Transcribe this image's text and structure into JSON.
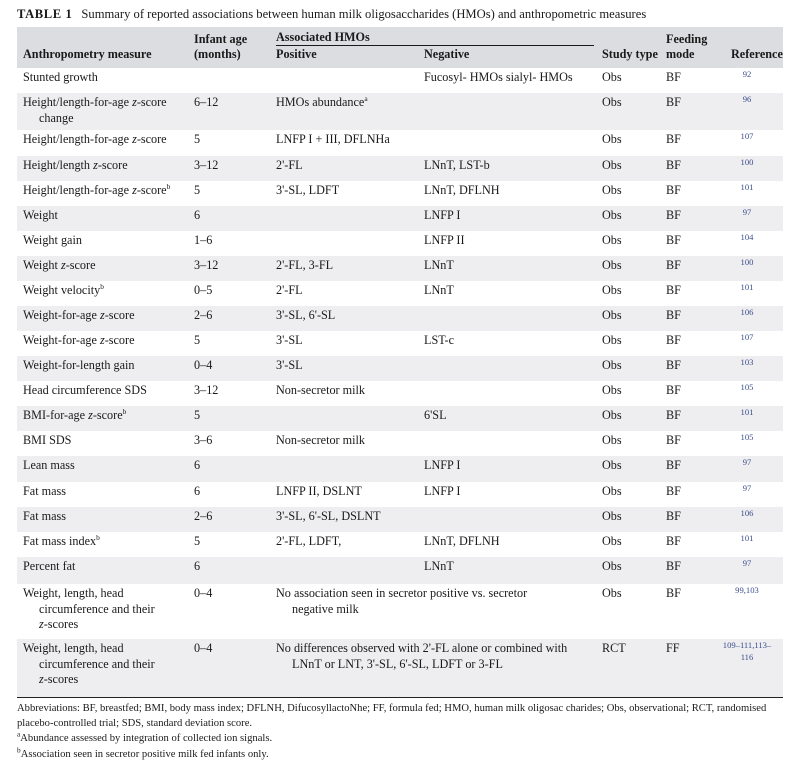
{
  "caption": {
    "label": "TABLE 1",
    "title": "Summary of reported associations between human milk oligosaccharides (HMOs) and anthropometric measures"
  },
  "header": {
    "measure": "Anthropometry measure",
    "age_line1": "Infant age",
    "age_line2": "(months)",
    "assoc": "Associated HMOs",
    "positive": "Positive",
    "negative": "Negative",
    "study": "Study type",
    "feed_line1": "Feeding",
    "feed_line2": "mode",
    "ref": "Reference"
  },
  "rows": [
    {
      "measure": "Stunted growth",
      "age": "",
      "positive": "",
      "negative": "Fucosyl- HMOs sialyl- HMOs",
      "study": "Obs",
      "feed": "BF",
      "ref": "92"
    },
    {
      "measure_a": "Height/length-for-age ",
      "measure_i": "z",
      "measure_b": "-score",
      "measure_cont": "change",
      "age": "6–12",
      "positive": "HMOs abundance",
      "positive_sup": "a",
      "negative": "",
      "study": "Obs",
      "feed": "BF",
      "ref": "96"
    },
    {
      "measure_a": "Height/length-for-age ",
      "measure_i": "z",
      "measure_b": "-score",
      "age": "5",
      "positive": "LNFP I + III, DFLNHa",
      "negative": "",
      "study": "Obs",
      "feed": "BF",
      "ref": "107"
    },
    {
      "measure_a": "Height/length ",
      "measure_i": "z",
      "measure_b": "-score",
      "age": "3–12",
      "positive": "2'-FL",
      "negative": "LNnT, LST-b",
      "study": "Obs",
      "feed": "BF",
      "ref": "100"
    },
    {
      "measure_a": "Height/length-for-age ",
      "measure_i": "z",
      "measure_b": "-score",
      "measure_sup": "b",
      "age": "5",
      "positive": "3'-SL, LDFT",
      "negative": "LNnT, DFLNH",
      "study": "Obs",
      "feed": "BF",
      "ref": "101"
    },
    {
      "measure": "Weight",
      "age": "6",
      "positive": "",
      "negative": "LNFP I",
      "study": "Obs",
      "feed": "BF",
      "ref": "97"
    },
    {
      "measure": "Weight gain",
      "age": "1–6",
      "positive": "",
      "negative": "LNFP II",
      "study": "Obs",
      "feed": "BF",
      "ref": "104"
    },
    {
      "measure_a": "Weight ",
      "measure_i": "z",
      "measure_b": "-score",
      "age": "3–12",
      "positive": "2'-FL, 3-FL",
      "negative": "LNnT",
      "study": "Obs",
      "feed": "BF",
      "ref": "100"
    },
    {
      "measure_a": "Weight velocity",
      "measure_sup": "b",
      "age": "0–5",
      "positive": "2'-FL",
      "negative": "LNnT",
      "study": "Obs",
      "feed": "BF",
      "ref": "101"
    },
    {
      "measure_a": "Weight-for-age ",
      "measure_i": "z",
      "measure_b": "-score",
      "age": "2–6",
      "positive": "3'-SL, 6'-SL",
      "negative": "",
      "study": "Obs",
      "feed": "BF",
      "ref": "106"
    },
    {
      "measure_a": "Weight-for-age ",
      "measure_i": "z",
      "measure_b": "-score",
      "age": "5",
      "positive": "3'-SL",
      "negative": "LST-c",
      "study": "Obs",
      "feed": "BF",
      "ref": "107"
    },
    {
      "measure": "Weight-for-length gain",
      "age": "0–4",
      "positive": "3'-SL",
      "negative": "",
      "study": "Obs",
      "feed": "BF",
      "ref": "103"
    },
    {
      "measure": "Head circumference SDS",
      "age": "3–12",
      "positive": "Non-secretor milk",
      "negative": "",
      "study": "Obs",
      "feed": "BF",
      "ref": "105"
    },
    {
      "measure_a": "BMI-for-age ",
      "measure_i": "z",
      "measure_b": "-score",
      "measure_sup": "b",
      "age": "5",
      "positive": "",
      "negative": "6'SL",
      "study": "Obs",
      "feed": "BF",
      "ref": "101"
    },
    {
      "measure": "BMI SDS",
      "age": "3–6",
      "positive": "Non-secretor milk",
      "negative": "",
      "study": "Obs",
      "feed": "BF",
      "ref": "105"
    },
    {
      "measure": "Lean mass",
      "age": "6",
      "positive": "",
      "negative": "LNFP I",
      "study": "Obs",
      "feed": "BF",
      "ref": "97"
    },
    {
      "measure": "Fat mass",
      "age": "6",
      "positive": "LNFP II, DSLNT",
      "negative": "LNFP I",
      "study": "Obs",
      "feed": "BF",
      "ref": "97"
    },
    {
      "measure": "Fat mass",
      "age": "2–6",
      "positive": "3'-SL, 6'-SL, DSLNT",
      "negative": "",
      "study": "Obs",
      "feed": "BF",
      "ref": "106"
    },
    {
      "measure_a": "Fat mass index",
      "measure_sup": "b",
      "age": "5",
      "positive": "2'-FL, LDFT,",
      "negative": "LNnT, DFLNH",
      "study": "Obs",
      "feed": "BF",
      "ref": "101"
    },
    {
      "measure": "Percent fat",
      "age": "6",
      "positive": "",
      "negative": "LNnT",
      "study": "Obs",
      "feed": "BF",
      "ref": "97"
    },
    {
      "measure_l1": "Weight, length, head",
      "measure_l2": "circumference and their",
      "measure_l3": "z",
      "measure_l3b": "-scores",
      "age": "0–4",
      "span_l1": "No association seen in secretor positive vs. secretor",
      "span_l2": "negative milk",
      "study": "Obs",
      "feed": "BF",
      "ref": "99,103"
    },
    {
      "measure_l1": "Weight, length, head",
      "measure_l2": "circumference and their",
      "measure_l3": "z",
      "measure_l3b": "-scores",
      "age": "0–4",
      "span_l1": "No differences observed with 2'-FL alone or combined with",
      "span_l2": "LNnT or LNT, 3'-SL, 6'-SL, LDFT or 3-FL",
      "study": "RCT",
      "feed": "FF",
      "ref_l1": "109–111,113–",
      "ref_l2": "116"
    }
  ],
  "footnotes": {
    "abbrev": "Abbreviations: BF, breastfed; BMI, body mass index; DFLNH, DifucosyllactoNhe; FF, formula fed; HMO, human milk oligosac charides; Obs, observational; RCT, randomised placebo-controlled trial; SDS, standard deviation score.",
    "a_mark": "a",
    "a_text": "Abundance assessed by integration of collected ion signals.",
    "b_mark": "b",
    "b_text": "Association seen in secretor positive milk fed infants only."
  }
}
